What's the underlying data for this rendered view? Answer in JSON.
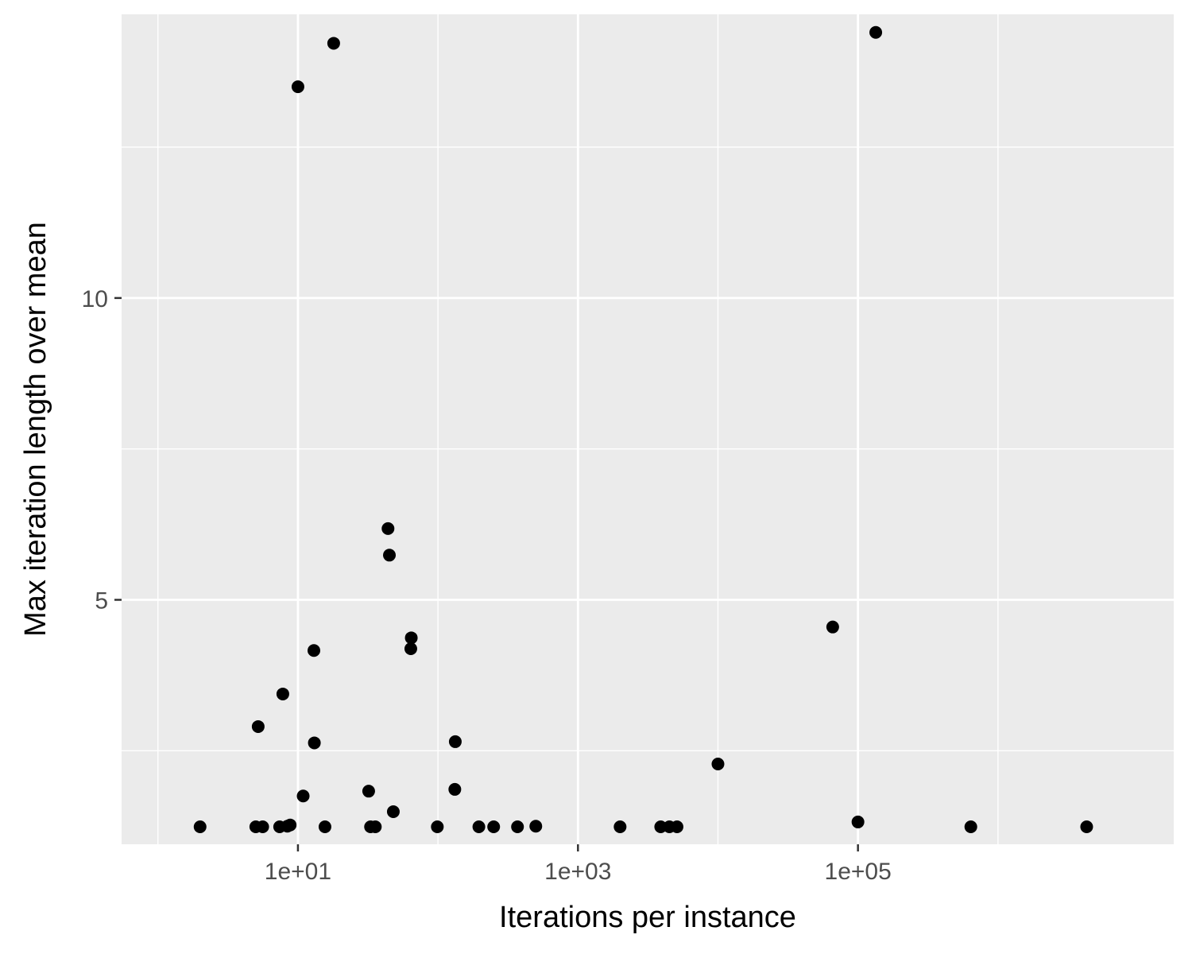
{
  "chart_data": {
    "type": "scatter",
    "xlabel": "Iterations per instance",
    "ylabel": "Max iteration length over mean",
    "x_scale": "log10",
    "xlim": [
      0.55,
      18000000
    ],
    "ylim": [
      0.95,
      14.7
    ],
    "x_ticks": [
      {
        "value": 10,
        "label": "1e+01"
      },
      {
        "value": 1000,
        "label": "1e+03"
      },
      {
        "value": 100000,
        "label": "1e+05"
      }
    ],
    "x_minor_ticks": [
      1,
      100,
      10000,
      1000000
    ],
    "y_ticks": [
      {
        "value": 5,
        "label": "5"
      },
      {
        "value": 10,
        "label": "10"
      }
    ],
    "y_minor_ticks": [
      2.5,
      7.5,
      12.5
    ],
    "grid": true,
    "panel_color": "#ebebeb",
    "grid_color": "#ffffff",
    "point_color": "#000000",
    "points": [
      {
        "x": 2,
        "y": 1.24
      },
      {
        "x": 5,
        "y": 1.24
      },
      {
        "x": 5.6,
        "y": 1.24
      },
      {
        "x": 7.4,
        "y": 1.24
      },
      {
        "x": 8.4,
        "y": 1.25
      },
      {
        "x": 8.8,
        "y": 1.27
      },
      {
        "x": 10,
        "y": 13.5
      },
      {
        "x": 10.9,
        "y": 1.75
      },
      {
        "x": 13,
        "y": 4.16
      },
      {
        "x": 13.1,
        "y": 2.63
      },
      {
        "x": 15.6,
        "y": 1.24
      },
      {
        "x": 18,
        "y": 14.22
      },
      {
        "x": 5.2,
        "y": 2.9
      },
      {
        "x": 7.8,
        "y": 3.44
      },
      {
        "x": 32,
        "y": 1.83
      },
      {
        "x": 33,
        "y": 1.24
      },
      {
        "x": 35.7,
        "y": 1.24
      },
      {
        "x": 44,
        "y": 6.18
      },
      {
        "x": 45,
        "y": 5.74
      },
      {
        "x": 48,
        "y": 1.49
      },
      {
        "x": 64,
        "y": 4.19
      },
      {
        "x": 64.5,
        "y": 4.37
      },
      {
        "x": 99,
        "y": 1.24
      },
      {
        "x": 132,
        "y": 1.86
      },
      {
        "x": 133,
        "y": 2.65
      },
      {
        "x": 196,
        "y": 1.24
      },
      {
        "x": 250,
        "y": 1.24
      },
      {
        "x": 370,
        "y": 1.24
      },
      {
        "x": 500,
        "y": 1.25
      },
      {
        "x": 2000,
        "y": 1.24
      },
      {
        "x": 3900,
        "y": 1.24
      },
      {
        "x": 4500,
        "y": 1.24
      },
      {
        "x": 5100,
        "y": 1.24
      },
      {
        "x": 10000,
        "y": 2.28
      },
      {
        "x": 66000,
        "y": 4.55
      },
      {
        "x": 100000,
        "y": 1.32
      },
      {
        "x": 134000,
        "y": 14.4
      },
      {
        "x": 640000,
        "y": 1.24
      },
      {
        "x": 4300000,
        "y": 1.24
      }
    ]
  }
}
